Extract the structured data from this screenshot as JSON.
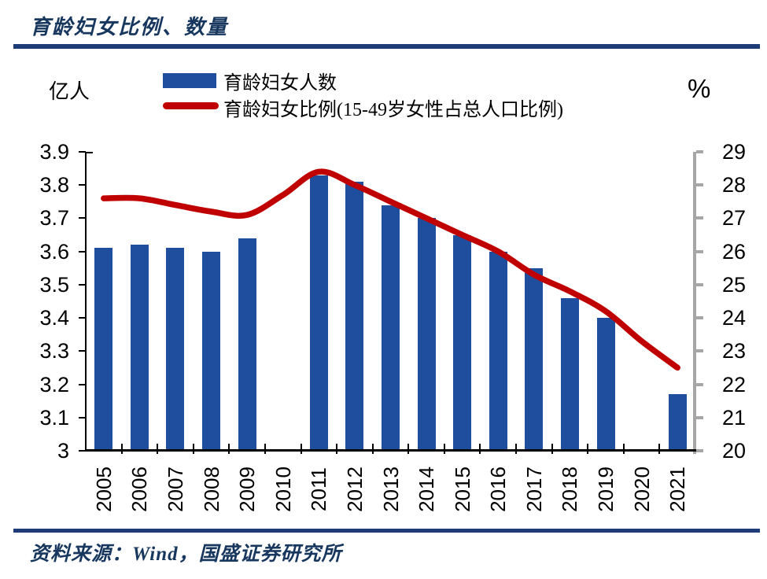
{
  "header": {
    "title": "育龄妇女比例、数量"
  },
  "axis_units": {
    "left": "亿人",
    "right": "%"
  },
  "legend": [
    {
      "label": "育龄妇女人数",
      "type": "bar"
    },
    {
      "label": "育龄妇女比例(15-49岁女性占总人口比例)",
      "type": "line"
    }
  ],
  "footer": {
    "source": "资料来源：Wind，国盛证券研究所"
  },
  "colors": {
    "bar_blue": "#1F4E9F",
    "line_red": "#C00000",
    "title_navy": "#17375E",
    "rule_navy": "#1E3C78",
    "axis_gray": "#A6A6A6",
    "axis_black": "#000000"
  },
  "chart_data": {
    "type": "bar",
    "subtype": "bar+line combo, dual axis",
    "title": "育龄妇女比例、数量",
    "categories": [
      "2005",
      "2006",
      "2007",
      "2008",
      "2009",
      "2010",
      "2011",
      "2012",
      "2013",
      "2014",
      "2015",
      "2016",
      "2017",
      "2018",
      "2019",
      "2020",
      "2021"
    ],
    "series": [
      {
        "name": "育龄妇女人数",
        "chart": "bar",
        "axis": "left",
        "unit": "亿人",
        "color": "#1F4E9F",
        "values": [
          3.61,
          3.62,
          3.61,
          3.6,
          3.64,
          null,
          3.83,
          3.81,
          3.74,
          3.7,
          3.65,
          3.6,
          3.55,
          3.46,
          3.4,
          null,
          3.17
        ]
      },
      {
        "name": "育龄妇女比例(15-49岁女性占总人口比例)",
        "chart": "line",
        "axis": "right",
        "unit": "%",
        "color": "#C00000",
        "values": [
          27.6,
          27.6,
          27.4,
          27.2,
          27.1,
          27.7,
          28.4,
          28.0,
          27.5,
          27.0,
          26.5,
          26.0,
          25.3,
          24.8,
          24.2,
          23.3,
          22.5
        ]
      }
    ],
    "left_axis": {
      "label": "亿人",
      "min": 3,
      "max": 3.9,
      "tick_labels": [
        "3.9",
        "3.8",
        "3.7",
        "3.6",
        "3.5",
        "3.4",
        "3.3",
        "3.2",
        "3.1",
        "3"
      ]
    },
    "right_axis": {
      "label": "%",
      "min": 20,
      "max": 29,
      "tick_labels": [
        "29",
        "28",
        "27",
        "26",
        "25",
        "24",
        "23",
        "22",
        "21",
        "20"
      ]
    },
    "grid": false,
    "legend_position": "top"
  }
}
